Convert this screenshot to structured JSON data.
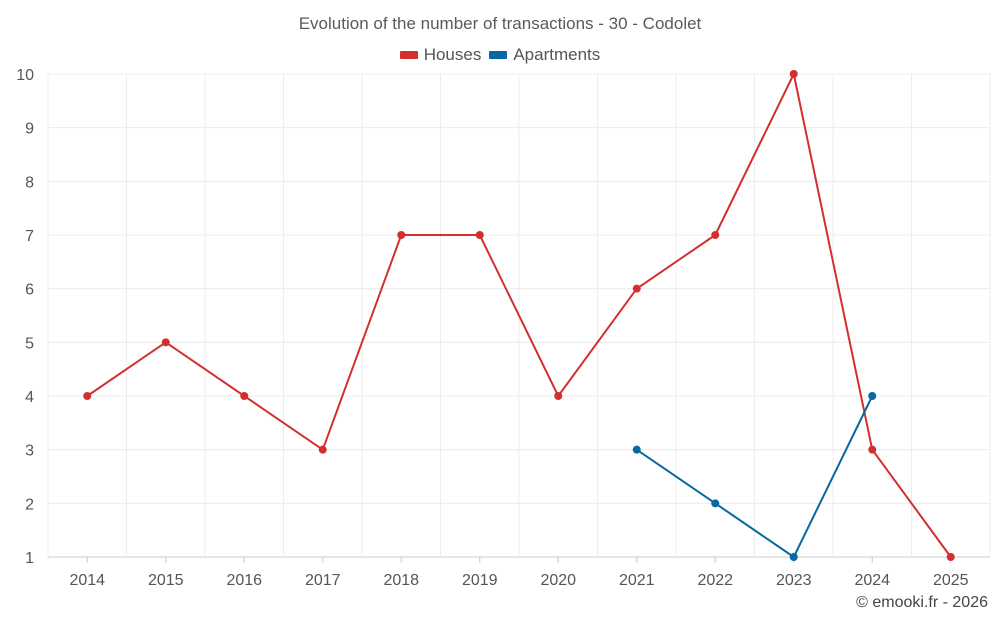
{
  "chart_data": {
    "type": "line",
    "title": "Evolution of the number of transactions - 30 - Codolet",
    "categories": [
      "2014",
      "2015",
      "2016",
      "2017",
      "2018",
      "2019",
      "2020",
      "2021",
      "2022",
      "2023",
      "2024",
      "2025"
    ],
    "ylim": [
      1,
      10
    ],
    "yticks": [
      1,
      2,
      3,
      4,
      5,
      6,
      7,
      8,
      9,
      10
    ],
    "grid": true,
    "legend_position": "top-center",
    "series": [
      {
        "name": "Houses",
        "color": "#d32f2f",
        "values": [
          4,
          5,
          4,
          3,
          7,
          7,
          4,
          6,
          7,
          10,
          3,
          1
        ]
      },
      {
        "name": "Apartments",
        "color": "#0868a0",
        "values": [
          null,
          null,
          null,
          null,
          null,
          null,
          null,
          3,
          2,
          1,
          4,
          null
        ]
      }
    ]
  },
  "credit": "© emooki.fr - 2026"
}
